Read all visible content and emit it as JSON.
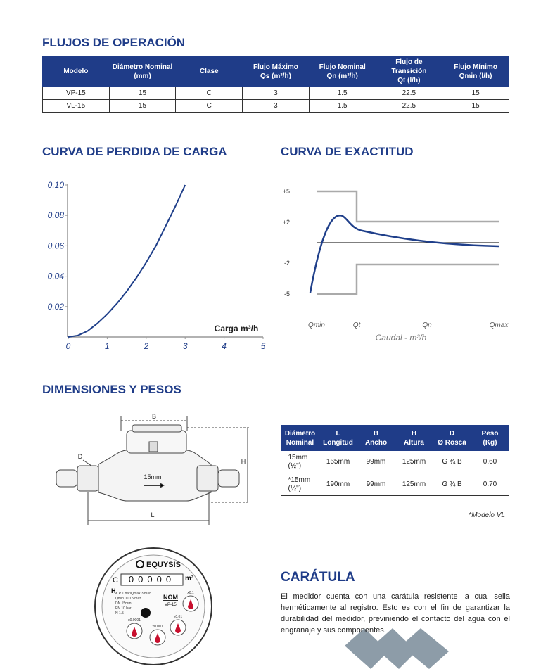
{
  "operation": {
    "title": "FLUJOS DE OPERACIÓN",
    "headers": [
      [
        "Modelo"
      ],
      [
        "Diámetro Nominal",
        "(mm)"
      ],
      [
        "Clase"
      ],
      [
        "Flujo Máximo",
        "Qs (m³/h)"
      ],
      [
        "Flujo Nominal",
        "Qn (m³/h)"
      ],
      [
        "Flujo de Transición",
        "Qt (l/h)"
      ],
      [
        "Flujo Mínimo",
        "Qmin (l/h)"
      ]
    ],
    "rows": [
      [
        "VP-15",
        "15",
        "C",
        "3",
        "1.5",
        "22.5",
        "15"
      ],
      [
        "VL-15",
        "15",
        "C",
        "3",
        "1.5",
        "22.5",
        "15"
      ]
    ]
  },
  "chart_data": [
    {
      "type": "line",
      "title": "CURVA DE PERDIDA DE CARGA",
      "x_label": "Carga m³/h",
      "x": [
        0,
        0.25,
        0.5,
        0.75,
        1,
        1.25,
        1.5,
        1.75,
        2,
        2.25,
        2.5,
        2.75,
        3
      ],
      "values": [
        0,
        0.001,
        0.004,
        0.009,
        0.015,
        0.022,
        0.03,
        0.039,
        0.049,
        0.06,
        0.073,
        0.086,
        0.1
      ],
      "color": "#1f3f8a",
      "xlim": [
        0,
        5
      ],
      "xticks": [
        0,
        1,
        2,
        3,
        4,
        5
      ],
      "ylim": [
        0,
        0.1
      ],
      "yticks": [
        0.02,
        0.04,
        0.06,
        0.08,
        {
          "value": 0.1,
          "label": "0.10"
        }
      ]
    },
    {
      "type": "illustration",
      "title": "CURVA DE EXACTITUD",
      "x_label": "Caudal - m³/h",
      "categories": [
        "Qmin",
        "Qt",
        "Qn",
        "Qmax"
      ],
      "ylim": [
        -5,
        5
      ],
      "yticks": [
        {
          "value": 5,
          "label": "+5"
        },
        {
          "value": 2,
          "label": "+2"
        },
        -2,
        -5
      ]
    }
  ],
  "dimensions": {
    "title": "DIMENSIONES Y PESOS",
    "headers": [
      [
        "Diámetro",
        "Nominal"
      ],
      [
        "L",
        "Longitud"
      ],
      [
        "B",
        "Ancho"
      ],
      [
        "H",
        "Altura"
      ],
      [
        "D",
        "Ø Rosca"
      ],
      [
        "Peso",
        "(Kg)"
      ]
    ],
    "rows": [
      [
        "15mm (½\")",
        "165mm",
        "99mm",
        "125mm",
        "G ¾ B",
        "0.60"
      ],
      [
        "*15mm (½\")",
        "190mm",
        "99mm",
        "125mm",
        "G ¾ B",
        "0.70"
      ]
    ],
    "note": "*Modelo VL",
    "drawing": {
      "b": "B",
      "d": "D",
      "h": "H",
      "l": "L",
      "size": "15mm"
    }
  },
  "dial": {
    "brand": "EQUYSIS",
    "class": "C",
    "digits": "00000",
    "unit": "m³",
    "nom": "NOM",
    "model": "VP-15",
    "h": "H",
    "specs": [
      "& P 1 bar/Qmax 3 m³/h",
      "Qmin 0.015 m³/h",
      "DN 15mm",
      "PN 10 bar",
      "N 1.5"
    ],
    "dials": [
      "x0.1",
      "x0.01",
      "x0.001",
      "x0.0001"
    ]
  },
  "caratula": {
    "title": "CARÁTULA",
    "text": "El medidor cuenta con una carátula resistente la cual sella herméticamente al registro. Esto es con el fin de garantizar la durabilidad del medidor, previniendo el contacto del agua con el engranaje y sus componentes."
  }
}
